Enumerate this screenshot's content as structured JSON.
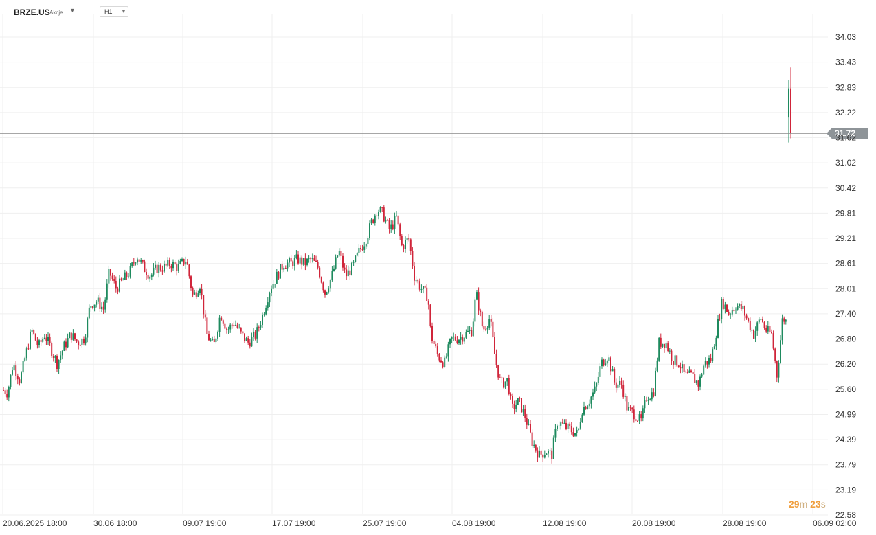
{
  "toolbar": {
    "symbol": "BRZE.US",
    "symbol_type": "Akcje",
    "timeframe": "H1"
  },
  "countdown": {
    "minutes": "29",
    "minutes_unit": "m",
    "seconds": "23",
    "seconds_unit": "s"
  },
  "colors": {
    "up": "#1e8a5e",
    "down": "#d0253a",
    "grid": "#efefef",
    "price_line": "#8a8a8a",
    "price_tag": "#8e9498"
  },
  "chart_data": {
    "type": "candlestick",
    "symbol": "BRZE.US",
    "interval": "H1",
    "y_ticks": [
      "34.03",
      "33.43",
      "32.83",
      "32.22",
      "31.62",
      "31.02",
      "30.42",
      "29.81",
      "29.21",
      "28.61",
      "28.01",
      "27.40",
      "26.80",
      "26.20",
      "25.60",
      "24.99",
      "24.39",
      "23.79",
      "23.19",
      "22.58"
    ],
    "x_ticks": [
      "20.06.2025  18:00",
      "30.06  18:00",
      "09.07  19:00",
      "17.07  19:00",
      "25.07  19:00",
      "04.08  19:00",
      "12.08  19:00",
      "20.08  19:00",
      "28.08  19:00",
      "06.09  02:00"
    ],
    "current_price": 31.72,
    "current_price_label": "31.72",
    "ylim": [
      22.58,
      34.33
    ],
    "candles_close_path": [
      [
        0,
        25.6
      ],
      [
        10,
        25.5
      ],
      [
        18,
        26.2
      ],
      [
        28,
        25.8
      ],
      [
        38,
        26.5
      ],
      [
        45,
        27.0
      ],
      [
        55,
        26.6
      ],
      [
        64,
        26.9
      ],
      [
        72,
        26.6
      ],
      [
        82,
        26.2
      ],
      [
        92,
        26.6
      ],
      [
        102,
        26.9
      ],
      [
        112,
        26.7
      ],
      [
        122,
        26.8
      ],
      [
        130,
        27.6
      ],
      [
        140,
        27.7
      ],
      [
        150,
        27.5
      ],
      [
        158,
        28.4
      ],
      [
        168,
        28.0
      ],
      [
        178,
        28.2
      ],
      [
        188,
        28.4
      ],
      [
        198,
        28.8
      ],
      [
        208,
        28.5
      ],
      [
        218,
        28.3
      ],
      [
        228,
        28.5
      ],
      [
        238,
        28.5
      ],
      [
        248,
        28.6
      ],
      [
        258,
        28.5
      ],
      [
        270,
        28.7
      ],
      [
        280,
        27.8
      ],
      [
        290,
        28.1
      ],
      [
        300,
        26.9
      ],
      [
        310,
        26.6
      ],
      [
        320,
        27.4
      ],
      [
        330,
        27.0
      ],
      [
        340,
        27.2
      ],
      [
        350,
        26.9
      ],
      [
        360,
        26.7
      ],
      [
        372,
        26.9
      ],
      [
        382,
        27.4
      ],
      [
        392,
        28.0
      ],
      [
        402,
        28.3
      ],
      [
        412,
        28.6
      ],
      [
        422,
        28.6
      ],
      [
        432,
        28.7
      ],
      [
        442,
        28.6
      ],
      [
        452,
        28.7
      ],
      [
        462,
        28.5
      ],
      [
        472,
        27.9
      ],
      [
        482,
        28.3
      ],
      [
        492,
        28.9
      ],
      [
        502,
        28.3
      ],
      [
        512,
        28.5
      ],
      [
        522,
        28.9
      ],
      [
        532,
        29.2
      ],
      [
        540,
        29.6
      ],
      [
        548,
        29.9
      ],
      [
        556,
        29.8
      ],
      [
        566,
        29.4
      ],
      [
        576,
        29.7
      ],
      [
        584,
        29.0
      ],
      [
        594,
        29.2
      ],
      [
        602,
        28.3
      ],
      [
        612,
        28.0
      ],
      [
        622,
        27.8
      ],
      [
        626,
        26.9
      ],
      [
        636,
        26.4
      ],
      [
        646,
        26.2
      ],
      [
        656,
        26.8
      ],
      [
        666,
        26.8
      ],
      [
        676,
        26.9
      ],
      [
        686,
        27.0
      ],
      [
        692,
        27.9
      ],
      [
        702,
        27.0
      ],
      [
        712,
        27.3
      ],
      [
        720,
        26.3
      ],
      [
        728,
        25.7
      ],
      [
        738,
        25.8
      ],
      [
        744,
        25.1
      ],
      [
        754,
        25.3
      ],
      [
        764,
        24.9
      ],
      [
        774,
        24.3
      ],
      [
        784,
        24.0
      ],
      [
        794,
        24.1
      ],
      [
        802,
        24.0
      ],
      [
        810,
        24.8
      ],
      [
        820,
        24.7
      ],
      [
        830,
        24.6
      ],
      [
        840,
        24.5
      ],
      [
        846,
        25.1
      ],
      [
        856,
        25.3
      ],
      [
        866,
        25.6
      ],
      [
        874,
        26.2
      ],
      [
        884,
        26.4
      ],
      [
        894,
        25.7
      ],
      [
        904,
        25.7
      ],
      [
        912,
        25.1
      ],
      [
        922,
        25.0
      ],
      [
        932,
        24.8
      ],
      [
        940,
        25.4
      ],
      [
        950,
        25.5
      ],
      [
        958,
        26.7
      ],
      [
        968,
        26.7
      ],
      [
        978,
        26.3
      ],
      [
        988,
        26.2
      ],
      [
        996,
        25.9
      ],
      [
        1006,
        25.9
      ],
      [
        1016,
        25.7
      ],
      [
        1024,
        26.2
      ],
      [
        1034,
        26.3
      ],
      [
        1042,
        27.0
      ],
      [
        1050,
        27.7
      ],
      [
        1060,
        27.4
      ],
      [
        1070,
        27.6
      ],
      [
        1080,
        27.5
      ],
      [
        1088,
        27.2
      ],
      [
        1096,
        26.9
      ],
      [
        1106,
        27.3
      ],
      [
        1114,
        27.0
      ],
      [
        1122,
        26.9
      ],
      [
        1130,
        25.9
      ],
      [
        1138,
        27.3
      ],
      [
        1144,
        27.2
      ],
      [
        1148,
        32.4
      ],
      [
        1152,
        32.0
      ]
    ],
    "last_candles": [
      {
        "o": 32.1,
        "h": 33.0,
        "l": 31.5,
        "c": 32.8
      },
      {
        "o": 32.8,
        "h": 33.3,
        "l": 31.6,
        "c": 31.72
      }
    ],
    "grid": true
  }
}
